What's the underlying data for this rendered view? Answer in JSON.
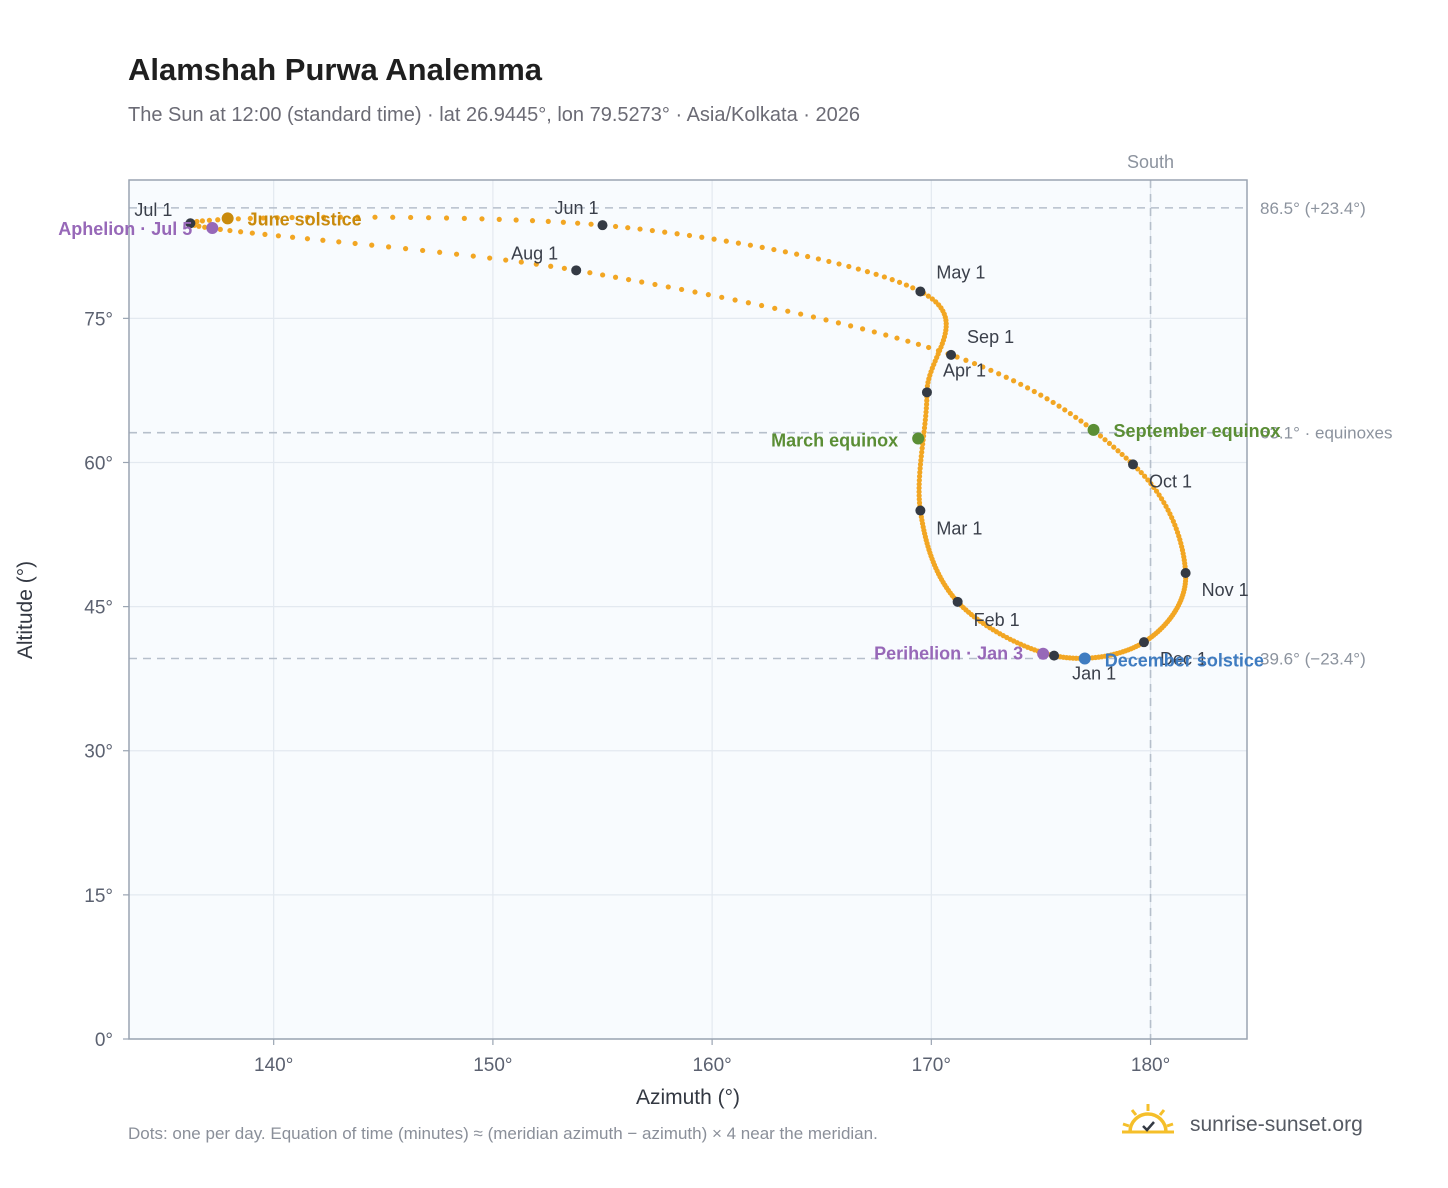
{
  "title": "Alamshah Purwa Analemma",
  "subtitle": "The Sun at 12:00 (standard time) · lat 26.9445°, lon 79.5273° · Asia/Kolkata · 2026",
  "footnote": "Dots: one per day. Equation of time (minutes) ≈ (meridian azimuth − azimuth) × 4 near the meridian.",
  "brand": "sunrise-sunset.org",
  "colors": {
    "curve": "#f2a623",
    "month_marker": "#343a44",
    "solstice_june": "#c98a0c",
    "solstice_december": "#3f7cc1",
    "equinox": "#5b8e35",
    "apsis": "#9768b8",
    "reference_line": "#b6bfcb",
    "plot_bg": "#f8fbfe",
    "grid": "#e3e9f0",
    "frame": "#9aa4b2"
  },
  "chart_data": {
    "type": "scatter",
    "xlabel": "Azimuth (°)",
    "ylabel": "Altitude (°)",
    "xlim": [
      133.4,
      184.4
    ],
    "ylim": [
      0,
      89.4
    ],
    "xticks": [
      140,
      150,
      160,
      170,
      180
    ],
    "xtick_labels": [
      "140°",
      "150°",
      "160°",
      "170°",
      "180°"
    ],
    "yticks": [
      0,
      15,
      30,
      45,
      60,
      75
    ],
    "ytick_labels": [
      "0°",
      "15°",
      "30°",
      "45°",
      "60°",
      "75°"
    ],
    "grid": true,
    "meridian": {
      "azimuth": 180,
      "label": "South"
    },
    "reference_lines": [
      {
        "altitude": 86.5,
        "label": "86.5° (+23.4°)"
      },
      {
        "altitude": 63.1,
        "label": "63.1° · equinoxes"
      },
      {
        "altitude": 39.6,
        "label": "39.6° (−23.4°)"
      }
    ],
    "series": [
      {
        "points": [
          [
            175.6,
            39.9
          ],
          [
            171.2,
            45.5
          ],
          [
            169.5,
            55.0
          ],
          [
            169.8,
            67.3
          ],
          [
            169.5,
            77.8
          ],
          [
            155.0,
            84.7
          ],
          [
            136.2,
            84.9
          ],
          [
            153.8,
            80.0
          ],
          [
            170.9,
            71.2
          ],
          [
            179.2,
            59.8
          ],
          [
            181.6,
            48.5
          ],
          [
            179.7,
            41.3
          ]
        ]
      }
    ],
    "month_markers": [
      {
        "label": "Jan 1",
        "azimuth": 175.6,
        "altitude": 39.9
      },
      {
        "label": "Feb 1",
        "azimuth": 171.2,
        "altitude": 45.5
      },
      {
        "label": "Mar 1",
        "azimuth": 169.5,
        "altitude": 55.0
      },
      {
        "label": "Apr 1",
        "azimuth": 169.8,
        "altitude": 67.3
      },
      {
        "label": "May 1",
        "azimuth": 169.5,
        "altitude": 77.8
      },
      {
        "label": "Jun 1",
        "azimuth": 155.0,
        "altitude": 84.7
      },
      {
        "label": "Jul 1",
        "azimuth": 136.2,
        "altitude": 84.9
      },
      {
        "label": "Aug 1",
        "azimuth": 153.8,
        "altitude": 80.0
      },
      {
        "label": "Sep 1",
        "azimuth": 170.9,
        "altitude": 71.2
      },
      {
        "label": "Oct 1",
        "azimuth": 179.2,
        "altitude": 59.8
      },
      {
        "label": "Nov 1",
        "azimuth": 181.6,
        "altitude": 48.5
      },
      {
        "label": "Dec 1",
        "azimuth": 179.7,
        "altitude": 41.3
      }
    ],
    "events": [
      {
        "label": "June solstice",
        "azimuth": 137.9,
        "altitude": 85.4
      },
      {
        "label": "Aphelion · Jul 5",
        "azimuth": 137.2,
        "altitude": 84.4
      },
      {
        "label": "March equinox",
        "azimuth": 169.4,
        "altitude": 62.5
      },
      {
        "label": "September equinox",
        "azimuth": 177.4,
        "altitude": 63.4
      },
      {
        "label": "Perihelion · Jan 3",
        "azimuth": 175.1,
        "altitude": 40.1
      },
      {
        "label": "December solstice",
        "azimuth": 177.0,
        "altitude": 39.6
      }
    ]
  }
}
